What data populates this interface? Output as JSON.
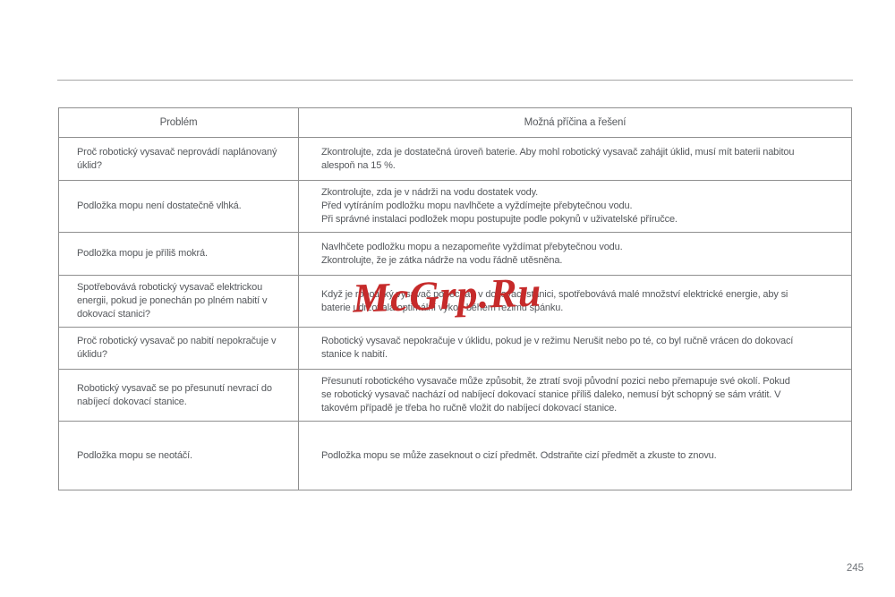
{
  "page": {
    "number": "245",
    "watermark": "McGrp.Ru"
  },
  "colors": {
    "watermark_red": "#c62a2a",
    "table_border_gray": "#8f8f8f",
    "text_gray": "#55585c",
    "rule_gray": "#a6a6a6"
  },
  "table": {
    "headers": [
      "Problém",
      "Možná příčina a řešení"
    ],
    "rows": [
      {
        "problem": "Proč robotický vysavač neprovádí naplánovaný úklid?",
        "solution_lines": [
          "Zkontrolujte, zda je dostatečná úroveň baterie. Aby mohl robotický vysavač zahájit úklid, musí mít baterii nabitou",
          "alespoň na 15 %."
        ]
      },
      {
        "problem": "Podložka mopu není dostatečně vlhká.",
        "solution_lines": [
          "Zkontrolujte, zda je v nádrži na vodu dostatek vody.",
          "Před vytíráním podložku mopu navlhčete a vyždímejte přebytečnou vodu.",
          "Při správné instalaci podložek mopu postupujte podle pokynů v uživatelské příručce."
        ]
      },
      {
        "problem": "Podložka mopu je příliš mokrá.",
        "solution_lines": [
          "Navlhčete podložku mopu a nezapomeňte vyždímat přebytečnou vodu.",
          "Zkontrolujte, že je zátka nádrže na vodu řádně utěsněna."
        ]
      },
      {
        "problem": "Spotřebovává robotický vysavač elektrickou energii, pokud je ponechán po plném nabití v dokovací stanici?",
        "solution_lines": [
          "Když je robotický vysavač ponechán v dokovací stanici, spotřebovává malé množství elektrické energie, aby si",
          "baterie udržovala optimální výkon během režimu spánku."
        ]
      },
      {
        "problem": "Proč robotický vysavač po nabití nepokračuje v úklidu?",
        "solution_lines": [
          "Robotický vysavač nepokračuje v úklidu, pokud je v režimu Nerušit nebo po té, co byl ručně vrácen do dokovací",
          "stanice k nabití."
        ]
      },
      {
        "problem": "Robotický vysavač se po přesunutí nevrací do nabíjecí dokovací stanice.",
        "solution_lines": [
          "Přesunutí robotického vysavače může způsobit, že ztratí svoji původní pozici nebo přemapuje své okolí. Pokud",
          "se robotický vysavač nachází od nabíjecí dokovací stanice příliš daleko, nemusí být schopný se sám vrátit. V",
          "takovém případě je třeba ho ručně vložit do nabíjecí dokovací stanice."
        ]
      },
      {
        "problem": "Podložka mopu se neotáčí.",
        "solution_lines": [
          "Podložka mopu se může zaseknout o cizí předmět. Odstraňte cizí předmět a zkuste to znovu."
        ]
      }
    ]
  }
}
